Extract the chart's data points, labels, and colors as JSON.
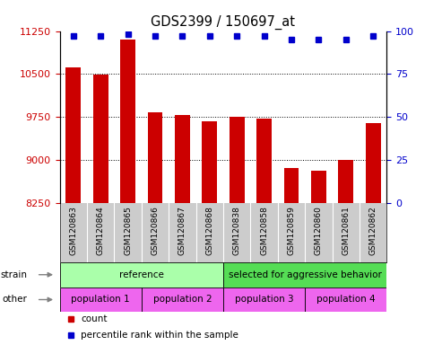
{
  "title": "GDS2399 / 150697_at",
  "samples": [
    "GSM120863",
    "GSM120864",
    "GSM120865",
    "GSM120866",
    "GSM120867",
    "GSM120868",
    "GSM120838",
    "GSM120858",
    "GSM120859",
    "GSM120860",
    "GSM120861",
    "GSM120862"
  ],
  "counts": [
    10620,
    10490,
    11100,
    9840,
    9790,
    9680,
    9760,
    9730,
    8860,
    8820,
    9000,
    9650
  ],
  "percentile_ranks": [
    97,
    97,
    98,
    97,
    97,
    97,
    97,
    97,
    95,
    95,
    95,
    97
  ],
  "ylim_left": [
    8250,
    11250
  ],
  "ylim_right": [
    0,
    100
  ],
  "yticks_left": [
    8250,
    9000,
    9750,
    10500,
    11250
  ],
  "yticks_right": [
    0,
    25,
    50,
    75,
    100
  ],
  "bar_color": "#cc0000",
  "dot_color": "#0000cc",
  "bar_width": 0.55,
  "strain_labels": [
    {
      "text": "reference",
      "start": 0,
      "end": 6,
      "color": "#aaffaa"
    },
    {
      "text": "selected for aggressive behavior",
      "start": 6,
      "end": 12,
      "color": "#55dd55"
    }
  ],
  "other_labels": [
    {
      "text": "population 1",
      "start": 0,
      "end": 3,
      "color": "#ee66ee"
    },
    {
      "text": "population 2",
      "start": 3,
      "end": 6,
      "color": "#ee66ee"
    },
    {
      "text": "population 3",
      "start": 6,
      "end": 9,
      "color": "#ee66ee"
    },
    {
      "text": "population 4",
      "start": 9,
      "end": 12,
      "color": "#ee66ee"
    }
  ],
  "legend_count_color": "#cc0000",
  "legend_dot_color": "#0000cc",
  "ticklabel_bg": "#cccccc",
  "plot_bg_color": "#ffffff"
}
